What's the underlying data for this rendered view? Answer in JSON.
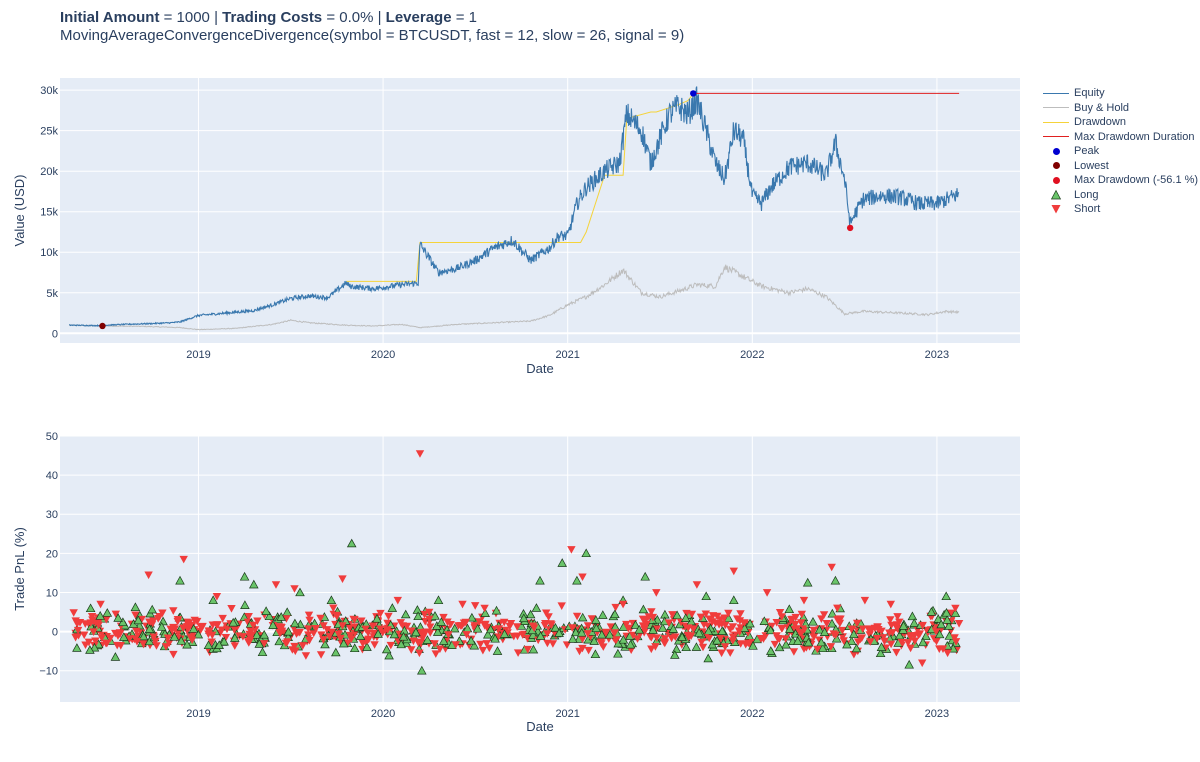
{
  "header": {
    "initial_label": "Initial Amount",
    "initial_value": " = 1000 | ",
    "costs_label": "Trading Costs",
    "costs_value": " = 0.0% | ",
    "leverage_label": "Leverage",
    "leverage_value": " = 1",
    "subtitle": "MovingAverageConvergenceDivergence(symbol = BTCUSDT, fast = 12, slow = 26, signal = 9)"
  },
  "legend": [
    {
      "label": "Equity",
      "kind": "line",
      "color": "#3a78ae"
    },
    {
      "label": "Buy & Hold",
      "kind": "line",
      "color": "#bdbdbd"
    },
    {
      "label": "Drawdown",
      "kind": "line",
      "color": "#f5d33a"
    },
    {
      "label": "Max Drawdown Duration",
      "kind": "line",
      "color": "#e02020"
    },
    {
      "label": "Peak",
      "kind": "dot",
      "color": "#0000d0"
    },
    {
      "label": "Lowest",
      "kind": "dot",
      "color": "#800000"
    },
    {
      "label": "Max Drawdown (-56.1 %)",
      "kind": "dot",
      "color": "#e01020"
    },
    {
      "label": "Long",
      "kind": "up",
      "color": "#6ac46a"
    },
    {
      "label": "Short",
      "kind": "down",
      "color": "#f03c3c"
    }
  ],
  "colors": {
    "plot_bg": "#e5ecf6",
    "grid": "#ffffff",
    "equity": "#3a78ae",
    "buyhold": "#bdbdbd",
    "drawdown": "#f5d33a",
    "maxdd": "#e02020"
  },
  "chart_data": [
    {
      "type": "line",
      "xlabel": "Date",
      "ylabel": "Value (USD)",
      "xlim": [
        2018.25,
        2023.45
      ],
      "ylim": [
        -1200,
        31500
      ],
      "x_ticks": [
        2019,
        2020,
        2021,
        2022,
        2023
      ],
      "x_tick_labels": [
        "2019",
        "2020",
        "2021",
        "2022",
        "2023"
      ],
      "y_ticks": [
        0,
        5000,
        10000,
        15000,
        20000,
        25000,
        30000
      ],
      "y_tick_labels": [
        "0",
        "5k",
        "10k",
        "15k",
        "20k",
        "25k",
        "30k"
      ],
      "series": [
        {
          "name": "Equity",
          "x": [
            2018.3,
            2018.45,
            2018.6,
            2018.75,
            2018.85,
            2018.9,
            2019.0,
            2019.15,
            2019.3,
            2019.4,
            2019.5,
            2019.6,
            2019.7,
            2019.8,
            2019.82,
            2019.95,
            2020.1,
            2020.19,
            2020.2,
            2020.3,
            2020.4,
            2020.5,
            2020.6,
            2020.7,
            2020.8,
            2020.9,
            2020.95,
            2021.0,
            2021.05,
            2021.1,
            2021.15,
            2021.2,
            2021.28,
            2021.32,
            2021.4,
            2021.45,
            2021.5,
            2021.55,
            2021.6,
            2021.65,
            2021.7,
            2021.75,
            2021.8,
            2021.85,
            2021.9,
            2021.95,
            2022.0,
            2022.05,
            2022.1,
            2022.2,
            2022.3,
            2022.4,
            2022.45,
            2022.5,
            2022.53,
            2022.55,
            2022.6,
            2022.7,
            2022.8,
            2022.9,
            2023.0,
            2023.05,
            2023.1,
            2023.12
          ],
          "y": [
            1000,
            950,
            1100,
            1200,
            1300,
            1400,
            2200,
            2500,
            2800,
            3500,
            4300,
            4600,
            4400,
            6200,
            5800,
            5500,
            6000,
            6200,
            11000,
            7500,
            8000,
            9000,
            10500,
            11500,
            9000,
            10500,
            12000,
            12000,
            16000,
            18000,
            19000,
            20000,
            21000,
            27000,
            25000,
            21000,
            24000,
            27000,
            28000,
            27000,
            28800,
            25000,
            21000,
            19000,
            25000,
            24000,
            17000,
            16000,
            18000,
            20500,
            21000,
            19500,
            23500,
            19000,
            13500,
            14500,
            16500,
            17000,
            16800,
            16000,
            16000,
            16500,
            17000,
            17200
          ]
        },
        {
          "name": "Buy & Hold",
          "x": [
            2018.3,
            2018.5,
            2018.7,
            2018.9,
            2019.0,
            2019.2,
            2019.4,
            2019.5,
            2019.6,
            2019.8,
            2019.95,
            2020.1,
            2020.2,
            2020.4,
            2020.6,
            2020.8,
            2020.9,
            2021.0,
            2021.1,
            2021.2,
            2021.3,
            2021.4,
            2021.5,
            2021.6,
            2021.7,
            2021.8,
            2021.85,
            2021.95,
            2022.05,
            2022.2,
            2022.3,
            2022.4,
            2022.5,
            2022.6,
            2022.8,
            2022.95,
            2023.05,
            2023.12
          ],
          "y": [
            1000,
            900,
            850,
            700,
            450,
            600,
            1100,
            1600,
            1300,
            1000,
            900,
            1100,
            700,
            1100,
            1300,
            1500,
            2200,
            3500,
            4500,
            6000,
            7800,
            5000,
            4500,
            5200,
            6000,
            5800,
            8200,
            7000,
            5800,
            5000,
            5500,
            4500,
            2400,
            2700,
            2500,
            2300,
            2700,
            2600
          ]
        },
        {
          "name": "Drawdown",
          "x": [
            2019.8,
            2020.18,
            2020.2,
            2021.07,
            2021.1,
            2021.2,
            2021.22,
            2021.3,
            2021.32,
            2021.45,
            2021.48,
            2021.6,
            2021.65,
            2021.68
          ],
          "y": [
            6400,
            6400,
            11200,
            11200,
            12500,
            19500,
            19500,
            19500,
            26500,
            27300,
            27300,
            28200,
            28700,
            29500
          ]
        },
        {
          "name": "Max Drawdown Duration",
          "x": [
            2021.68,
            2023.12
          ],
          "y": [
            29600,
            29600
          ]
        },
        {
          "name": "Peak",
          "x": [
            2021.68
          ],
          "y": [
            29600
          ]
        },
        {
          "name": "Lowest",
          "x": [
            2018.48
          ],
          "y": [
            900
          ]
        },
        {
          "name": "Max Drawdown (-56.1 %)",
          "x": [
            2022.53
          ],
          "y": [
            13000
          ]
        }
      ]
    },
    {
      "type": "scatter",
      "xlabel": "Date",
      "ylabel": "Trade PnL (%)",
      "xlim": [
        2018.25,
        2023.45
      ],
      "ylim": [
        -18,
        50
      ],
      "x_ticks": [
        2019,
        2020,
        2021,
        2022,
        2023
      ],
      "x_tick_labels": [
        "2019",
        "2020",
        "2021",
        "2022",
        "2023"
      ],
      "y_ticks": [
        -10,
        0,
        10,
        20,
        30,
        40,
        50
      ],
      "y_tick_labels": [
        "−10",
        "0",
        "10",
        "20",
        "30",
        "40",
        "50"
      ],
      "series": [
        {
          "name": "Long",
          "x": [
            2018.55,
            2018.9,
            2019.08,
            2019.25,
            2019.3,
            2019.55,
            2019.72,
            2019.83,
            2020.05,
            2020.21,
            2020.3,
            2020.62,
            2020.85,
            2020.97,
            2021.05,
            2021.1,
            2021.3,
            2021.42,
            2021.58,
            2021.75,
            2021.9,
            2022.1,
            2022.3,
            2022.45,
            2022.7,
            2022.85,
            2022.97,
            2023.05
          ],
          "y": [
            -6.5,
            13,
            8,
            14,
            12,
            10,
            8,
            22.5,
            6,
            -10,
            8,
            -5,
            13,
            17.5,
            13,
            20,
            8,
            14,
            -6,
            9,
            8,
            -5,
            12.5,
            13,
            -4,
            -8.5,
            5,
            9
          ]
        },
        {
          "name": "Short",
          "x": [
            2018.47,
            2018.73,
            2018.92,
            2019.1,
            2019.42,
            2019.52,
            2019.78,
            2020.08,
            2020.2,
            2020.25,
            2020.43,
            2020.55,
            2021.02,
            2021.08,
            2021.3,
            2021.48,
            2021.7,
            2021.9,
            2022.08,
            2022.28,
            2022.43,
            2022.61,
            2022.75,
            2022.92,
            2023.1
          ],
          "y": [
            7,
            14.5,
            18.5,
            9,
            12,
            11,
            13.5,
            8,
            45.5,
            5,
            7,
            6,
            21,
            14,
            7,
            10,
            12,
            15.5,
            10,
            8,
            16.5,
            8,
            7,
            -8,
            6
          ]
        }
      ]
    }
  ]
}
